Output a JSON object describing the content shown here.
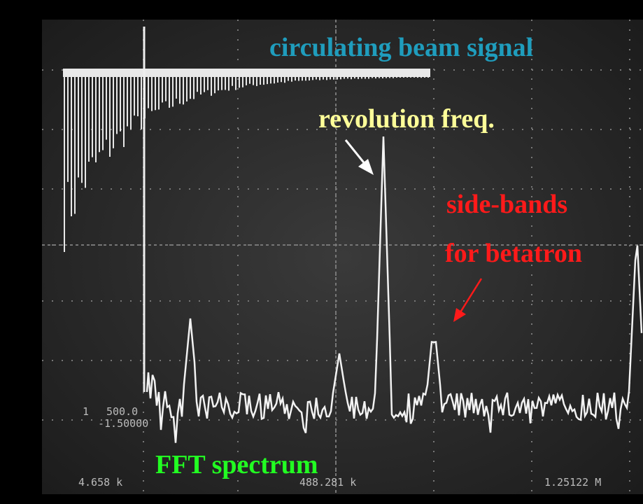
{
  "annotations": {
    "beam_signal": "circulating beam signal",
    "revolution": "revolution freq.",
    "sidebands_1": "side-bands",
    "sidebands_2": "for betatron",
    "fft": "FFT spectrum"
  },
  "readouts": {
    "scale_1": "1",
    "scale_2": "500.0",
    "scale_3": "-1.50000",
    "freq_left": "4.658 k",
    "freq_center": "488.281 k",
    "freq_right": "1.25122 M"
  }
}
